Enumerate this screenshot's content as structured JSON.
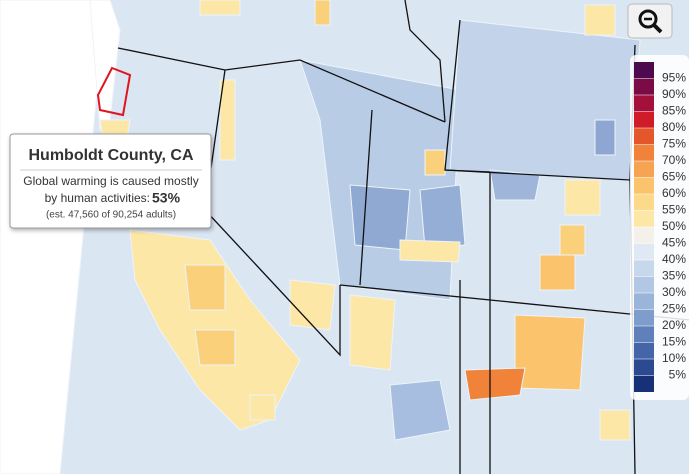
{
  "tooltip": {
    "title": "Humboldt County, CA",
    "line1": "Global warming is caused mostly",
    "line2": "by human activities:",
    "value": "53%",
    "note": "(est. 47,560 of 90,254 adults)"
  },
  "legend": {
    "swatches": [
      "#4d0a4f",
      "#7a0b47",
      "#a3103c",
      "#d01c26",
      "#e4572b",
      "#f0823a",
      "#f6a451",
      "#fbc46c",
      "#fdd98a",
      "#fde7a6",
      "#f3f1ea",
      "#dfe8f3",
      "#c8d8ec",
      "#b2c7e3",
      "#9ab5d9",
      "#7f9dcc",
      "#5f80bb",
      "#4565a8",
      "#2c4a92",
      "#173178"
    ],
    "labels": [
      "95%",
      "90%",
      "85%",
      "80%",
      "75%",
      "70%",
      "65%",
      "60%",
      "55%",
      "50%",
      "45%",
      "40%",
      "35%",
      "30%",
      "25%",
      "20%",
      "15%",
      "10%",
      "5%"
    ]
  }
}
